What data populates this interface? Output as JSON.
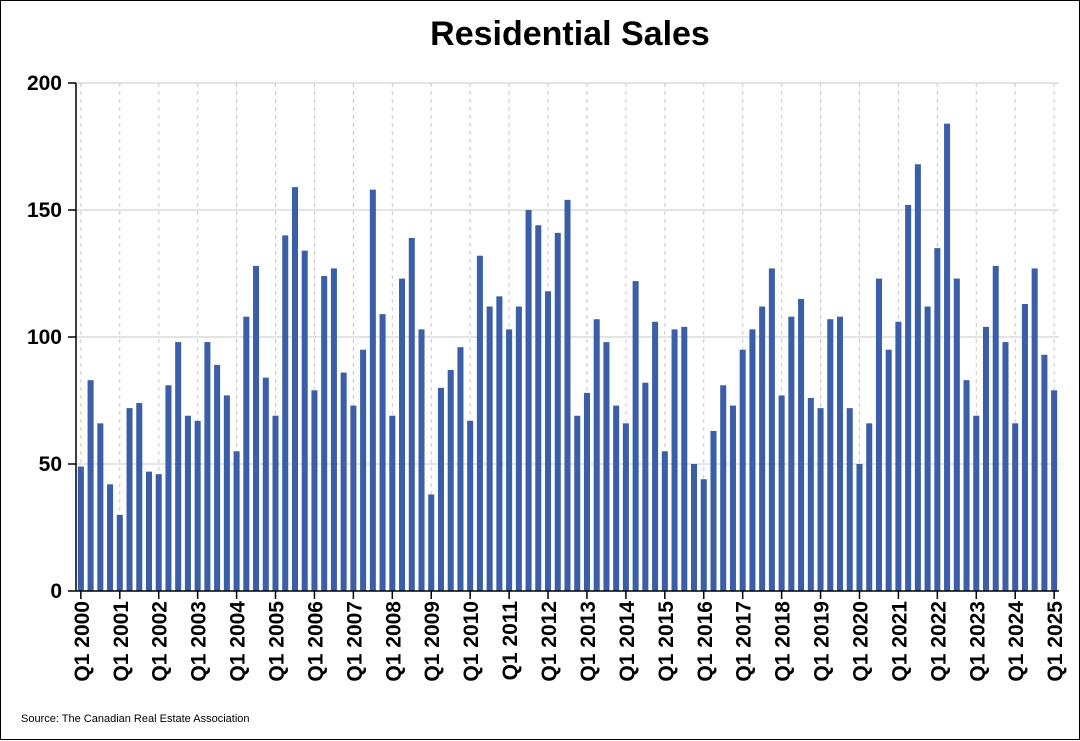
{
  "chart_data": {
    "type": "bar",
    "title": "Residential Sales",
    "xlabel": "",
    "ylabel": "",
    "ylim": [
      0,
      200
    ],
    "yticks": [
      0,
      50,
      100,
      150,
      200
    ],
    "grid": true,
    "legend": "none",
    "bar_color": "#3a5ea8",
    "categories": [
      "Q1 2000",
      "Q2 2000",
      "Q3 2000",
      "Q4 2000",
      "Q1 2001",
      "Q2 2001",
      "Q3 2001",
      "Q4 2001",
      "Q1 2002",
      "Q2 2002",
      "Q3 2002",
      "Q4 2002",
      "Q1 2003",
      "Q2 2003",
      "Q3 2003",
      "Q4 2003",
      "Q1 2004",
      "Q2 2004",
      "Q3 2004",
      "Q4 2004",
      "Q1 2005",
      "Q2 2005",
      "Q3 2005",
      "Q4 2005",
      "Q1 2006",
      "Q2 2006",
      "Q3 2006",
      "Q4 2006",
      "Q1 2007",
      "Q2 2007",
      "Q3 2007",
      "Q4 2007",
      "Q1 2008",
      "Q2 2008",
      "Q3 2008",
      "Q4 2008",
      "Q1 2009",
      "Q2 2009",
      "Q3 2009",
      "Q4 2009",
      "Q1 2010",
      "Q2 2010",
      "Q3 2010",
      "Q4 2010",
      "Q1 2011",
      "Q2 2011",
      "Q3 2011",
      "Q4 2011",
      "Q1 2012",
      "Q2 2012",
      "Q3 2012",
      "Q4 2012",
      "Q1 2013",
      "Q2 2013",
      "Q3 2013",
      "Q4 2013",
      "Q1 2014",
      "Q2 2014",
      "Q3 2014",
      "Q4 2014",
      "Q1 2015",
      "Q2 2015",
      "Q3 2015",
      "Q4 2015",
      "Q1 2016",
      "Q2 2016",
      "Q3 2016",
      "Q4 2016",
      "Q1 2017",
      "Q2 2017",
      "Q3 2017",
      "Q4 2017",
      "Q1 2018",
      "Q2 2018",
      "Q3 2018",
      "Q4 2018",
      "Q1 2019",
      "Q2 2019",
      "Q3 2019",
      "Q4 2019",
      "Q1 2020",
      "Q2 2020",
      "Q3 2020",
      "Q4 2020",
      "Q1 2021",
      "Q2 2021",
      "Q3 2021",
      "Q4 2021",
      "Q1 2022",
      "Q2 2022",
      "Q3 2022",
      "Q4 2022",
      "Q1 2023",
      "Q2 2023",
      "Q3 2023",
      "Q4 2023",
      "Q1 2024",
      "Q2 2024",
      "Q3 2024",
      "Q4 2024",
      "Q1 2025"
    ],
    "values": [
      49,
      83,
      66,
      42,
      30,
      72,
      74,
      47,
      46,
      81,
      98,
      69,
      67,
      98,
      89,
      77,
      55,
      108,
      128,
      84,
      69,
      140,
      159,
      134,
      79,
      124,
      127,
      86,
      73,
      95,
      158,
      109,
      69,
      123,
      139,
      103,
      38,
      80,
      87,
      96,
      67,
      132,
      112,
      116,
      103,
      112,
      150,
      144,
      118,
      141,
      154,
      69,
      78,
      107,
      98,
      73,
      66,
      122,
      82,
      106,
      55,
      103,
      104,
      50,
      44,
      63,
      81,
      73,
      95,
      103,
      112,
      127,
      77,
      108,
      115,
      76,
      72,
      107,
      108,
      72,
      50,
      66,
      123,
      95,
      106,
      152,
      168,
      112,
      135,
      184,
      123,
      83,
      69,
      104,
      128,
      98,
      66,
      113,
      127,
      93,
      79
    ],
    "tick_labels": [
      "Q1 2000",
      "Q1 2001",
      "Q1 2002",
      "Q1 2003",
      "Q1 2004",
      "Q1 2005",
      "Q1 2006",
      "Q1 2007",
      "Q1 2008",
      "Q1 2009",
      "Q1 2010",
      "Q1 2011",
      "Q1 2012",
      "Q1 2013",
      "Q1 2014",
      "Q1 2015",
      "Q1 2016",
      "Q1 2017",
      "Q1 2018",
      "Q1 2019",
      "Q1 2020",
      "Q1 2021",
      "Q1 2022",
      "Q1 2023",
      "Q1 2024",
      "Q1 2025"
    ],
    "tick_indices": [
      0,
      4,
      8,
      12,
      16,
      20,
      24,
      28,
      32,
      36,
      40,
      44,
      48,
      52,
      56,
      60,
      64,
      68,
      72,
      76,
      80,
      84,
      88,
      92,
      96,
      100
    ]
  },
  "source": "Source: The Canadian Real Estate Association"
}
